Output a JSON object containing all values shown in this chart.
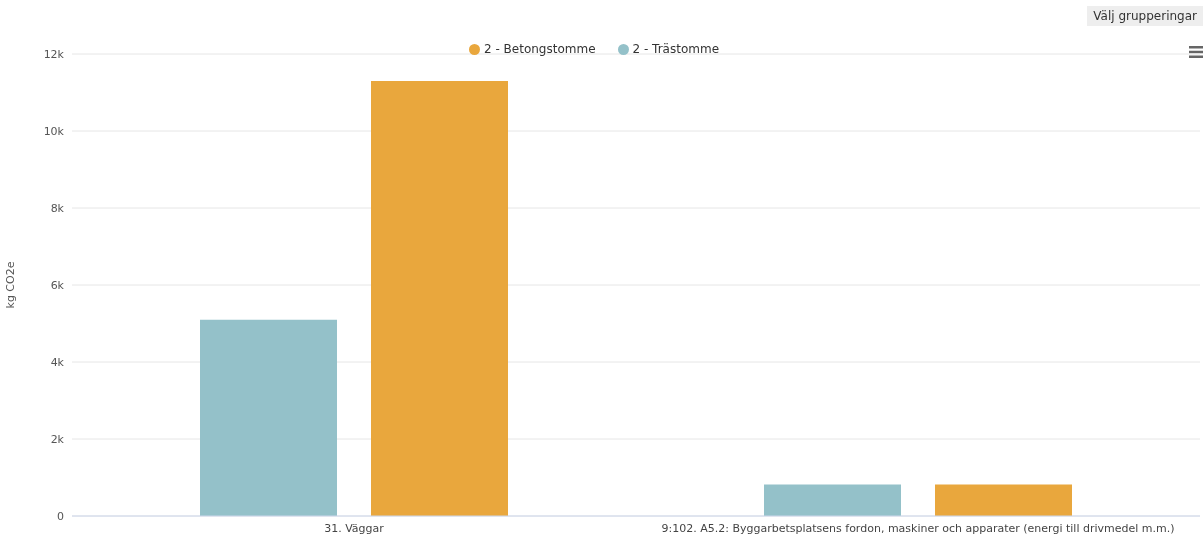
{
  "chart_data": {
    "type": "bar",
    "ylabel": "kg CO2e",
    "categories": [
      "31. Väggar",
      "9:102. A5.2: Byggarbetsplatsens fordon, maskiner och apparater (energi till drivmedel m.m.)"
    ],
    "series": [
      {
        "name": "2 - Trästomme",
        "color": "#94c1c9",
        "values": [
          5100,
          820
        ]
      },
      {
        "name": "2 - Betongstomme",
        "color": "#e9a73d",
        "values": [
          11300,
          820
        ]
      }
    ],
    "ylim": [
      0,
      12000
    ],
    "yticks": [
      {
        "value": 0,
        "label": "0"
      },
      {
        "value": 2000,
        "label": "2k"
      },
      {
        "value": 4000,
        "label": "4k"
      },
      {
        "value": 6000,
        "label": "6k"
      },
      {
        "value": 8000,
        "label": "8k"
      },
      {
        "value": 10000,
        "label": "10k"
      },
      {
        "value": 12000,
        "label": "12k"
      }
    ],
    "grid": "y",
    "legend": "top",
    "annotations": [
      "Välj grupperingar"
    ]
  }
}
